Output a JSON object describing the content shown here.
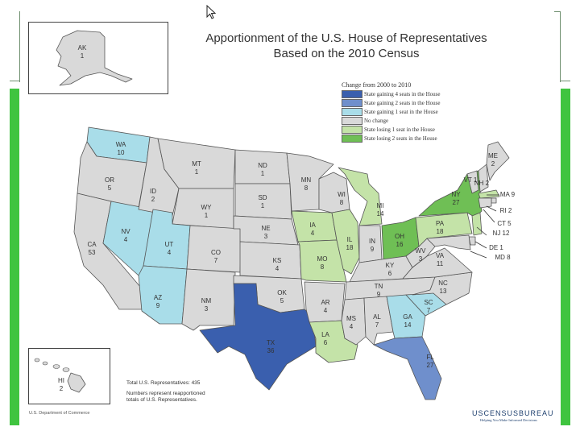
{
  "title": {
    "line1": "Apportionment of the U.S. House of Representatives",
    "line2": "Based on the 2010 Census"
  },
  "legend": {
    "title": "Change from 2000 to 2010",
    "items": [
      {
        "label": "State gaining 4 seats in the House",
        "color": "#3a5fae"
      },
      {
        "label": "State gaining 2 seats in the House",
        "color": "#6f8fcc"
      },
      {
        "label": "State gaining 1 seat in the House",
        "color": "#a9dde9"
      },
      {
        "label": "No change",
        "color": "#d9d9d9"
      },
      {
        "label": "State losing 1 seat in the House",
        "color": "#c4e3a8"
      },
      {
        "label": "State losing 2 seats in the House",
        "color": "#6fbf55"
      }
    ]
  },
  "notes": {
    "total": "Total U.S. Representatives: 435",
    "numbers_line1": "Numbers represent reapportioned",
    "numbers_line2": "totals of U.S. Representatives."
  },
  "footer": {
    "dept": "U.S. Department of Commerce",
    "logo": "USCENSUSBUREAU",
    "tagline": "Helping You Make Informed Decisions"
  },
  "states": [
    {
      "abbr": "AK",
      "seats": "1",
      "change": "No change"
    },
    {
      "abbr": "HI",
      "seats": "2",
      "change": "No change"
    },
    {
      "abbr": "WA",
      "seats": "10",
      "change": "State gaining 1 seat in the House"
    },
    {
      "abbr": "OR",
      "seats": "5",
      "change": "No change"
    },
    {
      "abbr": "CA",
      "seats": "53",
      "change": "No change"
    },
    {
      "abbr": "NV",
      "seats": "4",
      "change": "State gaining 1 seat in the House"
    },
    {
      "abbr": "ID",
      "seats": "2",
      "change": "No change"
    },
    {
      "abbr": "MT",
      "seats": "1",
      "change": "No change"
    },
    {
      "abbr": "WY",
      "seats": "1",
      "change": "No change"
    },
    {
      "abbr": "UT",
      "seats": "4",
      "change": "State gaining 1 seat in the House"
    },
    {
      "abbr": "AZ",
      "seats": "9",
      "change": "State gaining 1 seat in the House"
    },
    {
      "abbr": "CO",
      "seats": "7",
      "change": "No change"
    },
    {
      "abbr": "NM",
      "seats": "3",
      "change": "No change"
    },
    {
      "abbr": "ND",
      "seats": "1",
      "change": "No change"
    },
    {
      "abbr": "SD",
      "seats": "1",
      "change": "No change"
    },
    {
      "abbr": "NE",
      "seats": "3",
      "change": "No change"
    },
    {
      "abbr": "KS",
      "seats": "4",
      "change": "No change"
    },
    {
      "abbr": "OK",
      "seats": "5",
      "change": "No change"
    },
    {
      "abbr": "TX",
      "seats": "36",
      "change": "State gaining 4 seats in the House"
    },
    {
      "abbr": "MN",
      "seats": "8",
      "change": "No change"
    },
    {
      "abbr": "IA",
      "seats": "4",
      "change": "State losing 1 seat in the House"
    },
    {
      "abbr": "MO",
      "seats": "8",
      "change": "State losing 1 seat in the House"
    },
    {
      "abbr": "AR",
      "seats": "4",
      "change": "No change"
    },
    {
      "abbr": "LA",
      "seats": "6",
      "change": "State losing 1 seat in the House"
    },
    {
      "abbr": "WI",
      "seats": "8",
      "change": "No change"
    },
    {
      "abbr": "IL",
      "seats": "18",
      "change": "State losing 1 seat in the House"
    },
    {
      "abbr": "MI",
      "seats": "14",
      "change": "State losing 1 seat in the House"
    },
    {
      "abbr": "IN",
      "seats": "9",
      "change": "No change"
    },
    {
      "abbr": "OH",
      "seats": "16",
      "change": "State losing 2 seats in the House"
    },
    {
      "abbr": "KY",
      "seats": "6",
      "change": "No change"
    },
    {
      "abbr": "TN",
      "seats": "9",
      "change": "No change"
    },
    {
      "abbr": "MS",
      "seats": "4",
      "change": "No change"
    },
    {
      "abbr": "AL",
      "seats": "7",
      "change": "No change"
    },
    {
      "abbr": "GA",
      "seats": "14",
      "change": "State gaining 1 seat in the House"
    },
    {
      "abbr": "FL",
      "seats": "27",
      "change": "State gaining 2 seats in the House"
    },
    {
      "abbr": "SC",
      "seats": "7",
      "change": "State gaining 1 seat in the House"
    },
    {
      "abbr": "NC",
      "seats": "13",
      "change": "No change"
    },
    {
      "abbr": "VA",
      "seats": "11",
      "change": "No change"
    },
    {
      "abbr": "WV",
      "seats": "3",
      "change": "No change"
    },
    {
      "abbr": "PA",
      "seats": "18",
      "change": "State losing 1 seat in the House"
    },
    {
      "abbr": "NY",
      "seats": "27",
      "change": "State losing 2 seats in the House"
    },
    {
      "abbr": "VT",
      "seats": "1",
      "change": "No change"
    },
    {
      "abbr": "NH",
      "seats": "2",
      "change": "No change"
    },
    {
      "abbr": "ME",
      "seats": "2",
      "change": "No change"
    },
    {
      "abbr": "MA",
      "seats": "9",
      "change": "State losing 1 seat in the House"
    },
    {
      "abbr": "RI",
      "seats": "2",
      "change": "No change"
    },
    {
      "abbr": "CT",
      "seats": "5",
      "change": "No change"
    },
    {
      "abbr": "NJ",
      "seats": "12",
      "change": "State losing 1 seat in the House"
    },
    {
      "abbr": "DE",
      "seats": "1",
      "change": "No change"
    },
    {
      "abbr": "MD",
      "seats": "8",
      "change": "No change"
    }
  ]
}
